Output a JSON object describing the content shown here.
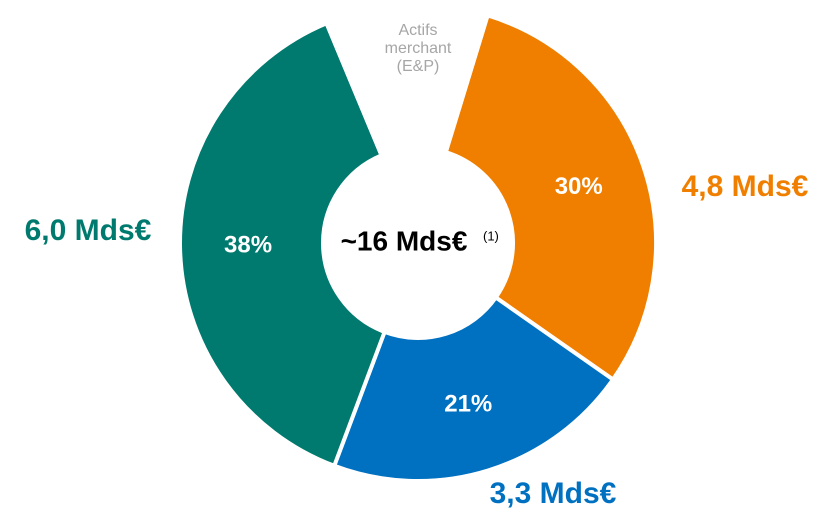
{
  "chart_data": {
    "type": "donut",
    "categories": [
      null,
      null,
      null,
      "Actifs merchant (E&P)"
    ],
    "values": [
      30,
      21,
      38,
      11
    ],
    "value_labels": [
      "30%",
      "21%",
      "38%",
      null
    ],
    "amount_labels": [
      "4,8 Mds€",
      "3,3 Mds€",
      "6,0 Mds€",
      null
    ],
    "colors": [
      "#f07f00",
      "#0070c0",
      "#007a6e",
      "#ffffff"
    ],
    "center_label": "~16 Mds€",
    "center_note": "(1)"
  }
}
